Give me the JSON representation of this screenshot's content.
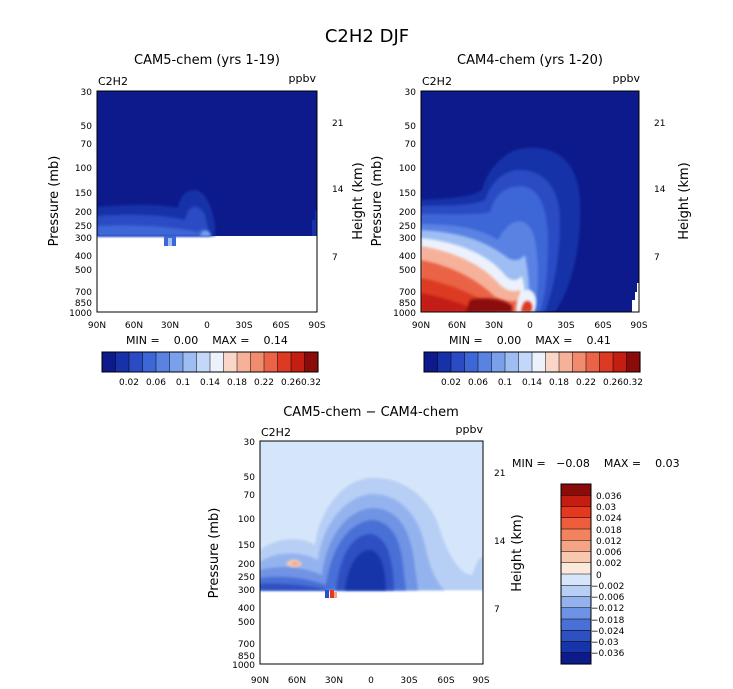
{
  "page_title": "C2H2 DJF",
  "chart_data": [
    {
      "type": "heatmap",
      "title": "CAM5-chem (yrs 1-19)",
      "species_label": "C2H2",
      "units": "ppbv",
      "ylabel": "Pressure (mb)",
      "ylabel_right": "Height (km)",
      "x_tick_labels": [
        "90N",
        "60N",
        "30N",
        "0",
        "30S",
        "60S",
        "90S"
      ],
      "y_tick_labels": [
        "30",
        "50",
        "70",
        "100",
        "150",
        "200",
        "250",
        "300",
        "400",
        "500",
        "700",
        "850",
        "1000"
      ],
      "right_tick_labels": [
        "21",
        "14",
        "7"
      ],
      "min_max": "MIN =    0.00    MAX =    0.14",
      "min": 0.0,
      "max": 0.14,
      "colorbar_labels": [
        "0.02",
        "0.06",
        "0.1",
        "0.14",
        "0.18",
        "0.22",
        "0.26",
        "0.32"
      ]
    },
    {
      "type": "heatmap",
      "title": "CAM4-chem (yrs 1-20)",
      "species_label": "C2H2",
      "units": "ppbv",
      "ylabel": "Pressure (mb)",
      "ylabel_right": "Height (km)",
      "x_tick_labels": [
        "90N",
        "60N",
        "30N",
        "0",
        "30S",
        "60S",
        "90S"
      ],
      "y_tick_labels": [
        "30",
        "50",
        "70",
        "100",
        "150",
        "200",
        "250",
        "300",
        "400",
        "500",
        "700",
        "850",
        "1000"
      ],
      "right_tick_labels": [
        "21",
        "14",
        "7"
      ],
      "min_max": "MIN =    0.00    MAX =    0.41",
      "min": 0.0,
      "max": 0.41,
      "colorbar_labels": [
        "0.02",
        "0.06",
        "0.1",
        "0.14",
        "0.18",
        "0.22",
        "0.26",
        "0.32"
      ]
    },
    {
      "type": "heatmap",
      "title": "CAM5-chem − CAM4-chem",
      "species_label": "C2H2",
      "units": "ppbv",
      "ylabel": "Pressure (mb)",
      "ylabel_right": "Height (km)",
      "x_tick_labels": [
        "90N",
        "60N",
        "30N",
        "0",
        "30S",
        "60S",
        "90S"
      ],
      "y_tick_labels": [
        "30",
        "50",
        "70",
        "100",
        "150",
        "200",
        "250",
        "300",
        "400",
        "500",
        "700",
        "850",
        "1000"
      ],
      "right_tick_labels": [
        "21",
        "14",
        "7"
      ],
      "min_max": "MIN =   −0.08    MAX =    0.03",
      "min": -0.08,
      "max": 0.03,
      "colorbar_labels": [
        "0.036",
        "0.03",
        "0.024",
        "0.018",
        "0.012",
        "0.006",
        "0.002",
        "0",
        "−0.002",
        "−0.006",
        "−0.012",
        "−0.018",
        "−0.024",
        "−0.03",
        "−0.036"
      ]
    }
  ],
  "colors": {
    "seq": [
      "#0d1a8c",
      "#1731a8",
      "#2a4bc4",
      "#3d66d6",
      "#5a82e3",
      "#7aa0ec",
      "#9dbdf3",
      "#c3d8f8",
      "#ecf1fb",
      "#fad6c8",
      "#f6b19a",
      "#f18b6e",
      "#ea6347",
      "#dc3a22",
      "#c41d12",
      "#8b0a0a"
    ],
    "div": [
      "#8b0a0a",
      "#c41d12",
      "#e4391f",
      "#ee5e3c",
      "#f3835f",
      "#f5a585",
      "#f8c7b0",
      "#fde8dc",
      "#d6e6fa",
      "#b7cff5",
      "#94b3ee",
      "#6f93e4",
      "#4a70d6",
      "#2d50c2",
      "#1735a8",
      "#0d1a8c"
    ]
  }
}
